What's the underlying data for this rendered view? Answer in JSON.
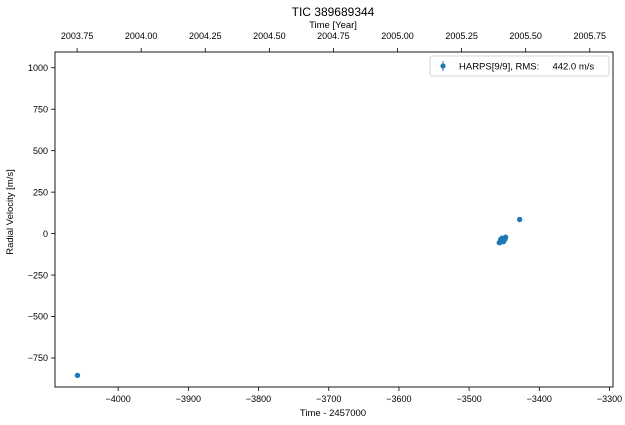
{
  "chart_data": {
    "type": "scatter",
    "title": "TIC 389689344",
    "xlabel": "Time - 2457000",
    "ylabel": "Radial Velocity [m/s]",
    "top_xlabel": "Time [Year]",
    "xlim": [
      -4090,
      -3295
    ],
    "ylim": [
      -925,
      1095
    ],
    "x_ticks": [
      {
        "value": -4000,
        "label": "−4000"
      },
      {
        "value": -3900,
        "label": "−3900"
      },
      {
        "value": -3800,
        "label": "−3800"
      },
      {
        "value": -3700,
        "label": "−3700"
      },
      {
        "value": -3600,
        "label": "−3600"
      },
      {
        "value": -3500,
        "label": "−3500"
      },
      {
        "value": -3400,
        "label": "−3400"
      },
      {
        "value": -3300,
        "label": "−3300"
      }
    ],
    "y_ticks": [
      {
        "value": 1000,
        "label": "1000"
      },
      {
        "value": 750,
        "label": "750"
      },
      {
        "value": 500,
        "label": "500"
      },
      {
        "value": 250,
        "label": "250"
      },
      {
        "value": 0,
        "label": "0"
      },
      {
        "value": -250,
        "label": "−250"
      },
      {
        "value": -500,
        "label": "−500"
      },
      {
        "value": -750,
        "label": "−750"
      }
    ],
    "top_ticks": [
      {
        "value": -4058.5,
        "label": "2003.75"
      },
      {
        "value": -3967.2,
        "label": "2004.00"
      },
      {
        "value": -3875.9,
        "label": "2004.25"
      },
      {
        "value": -3784.6,
        "label": "2004.50"
      },
      {
        "value": -3693.3,
        "label": "2004.75"
      },
      {
        "value": -3602.0,
        "label": "2005.00"
      },
      {
        "value": -3510.7,
        "label": "2005.25"
      },
      {
        "value": -3419.4,
        "label": "2005.50"
      },
      {
        "value": -3328.1,
        "label": "2005.75"
      }
    ],
    "series": [
      {
        "name": "HARPS[9/9], RMS:     442.0 m/s",
        "color": "#1f77b4",
        "marker": "circle",
        "error_bars": true,
        "points": [
          {
            "x": -4058,
            "y": -855
          },
          {
            "x": -3457,
            "y": -55
          },
          {
            "x": -3455,
            "y": -35
          },
          {
            "x": -3454,
            "y": -50
          },
          {
            "x": -3453,
            "y": -28
          },
          {
            "x": -3451,
            "y": -48
          },
          {
            "x": -3449,
            "y": -35
          },
          {
            "x": -3448,
            "y": -22
          },
          {
            "x": -3428,
            "y": 85
          }
        ]
      }
    ],
    "legend_position": "top-right",
    "grid": false
  }
}
